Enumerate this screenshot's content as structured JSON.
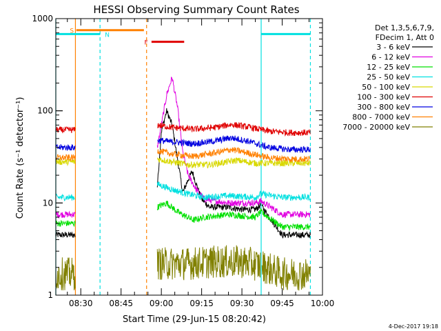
{
  "chart_data": {
    "type": "line",
    "title": "HESSI Observing Summary Count Rates",
    "xlabel": "Start Time (29-Jun-15 08:20:42)",
    "ylabel": "Count Rate (s⁻¹ detector⁻¹)",
    "yscale": "log",
    "ylim": [
      1,
      1000
    ],
    "xlim": [
      "08:20:42",
      "10:00:00"
    ],
    "x_ticks": [
      "08:30",
      "08:45",
      "09:00",
      "09:15",
      "09:30",
      "09:45",
      "10:00"
    ],
    "y_ticks": [
      "1",
      "10",
      "100",
      "1000"
    ],
    "legend_header": [
      "Det 1,3,5,6,7,9,",
      "FDecim 1, Att 0"
    ],
    "legend_position": "right",
    "timestamp": "4-Dec-2017 19:18",
    "series": [
      {
        "name": "3 - 6 keV",
        "color": "#000000",
        "points": [
          [
            "08:20:42",
            4.5
          ],
          [
            "08:28:00",
            4.5
          ],
          [
            "08:58:30",
            15
          ],
          [
            "09:00:00",
            60
          ],
          [
            "09:02:00",
            100
          ],
          [
            "09:04:00",
            70
          ],
          [
            "09:06:00",
            30
          ],
          [
            "09:08:00",
            13
          ],
          [
            "09:10:00",
            18
          ],
          [
            "09:11:30",
            22
          ],
          [
            "09:13:00",
            16
          ],
          [
            "09:15:00",
            11
          ],
          [
            "09:18:00",
            9
          ],
          [
            "09:25:00",
            9
          ],
          [
            "09:30:00",
            8.5
          ],
          [
            "09:35:00",
            8.5
          ],
          [
            "09:37:00",
            9.5
          ],
          [
            "09:45:00",
            4.5
          ],
          [
            "09:55:30",
            4.5
          ]
        ]
      },
      {
        "name": "6 - 12 keV",
        "color": "#e000e0",
        "points": [
          [
            "08:20:42",
            7.5
          ],
          [
            "08:28:00",
            7.5
          ],
          [
            "08:58:30",
            40
          ],
          [
            "09:00:00",
            70
          ],
          [
            "09:02:00",
            150
          ],
          [
            "09:04:00",
            230
          ],
          [
            "09:06:00",
            110
          ],
          [
            "09:08:00",
            35
          ],
          [
            "09:10:00",
            20
          ],
          [
            "09:13:00",
            14
          ],
          [
            "09:16:00",
            11
          ],
          [
            "09:25:00",
            10
          ],
          [
            "09:35:00",
            10
          ],
          [
            "09:37:00",
            10.5
          ],
          [
            "09:45:00",
            7.5
          ],
          [
            "09:55:30",
            7.5
          ]
        ]
      },
      {
        "name": "12 - 25 keV",
        "color": "#00e000",
        "points": [
          [
            "08:20:42",
            6
          ],
          [
            "08:28:00",
            6
          ],
          [
            "08:58:30",
            9
          ],
          [
            "09:02:00",
            10
          ],
          [
            "09:06:00",
            8
          ],
          [
            "09:12:00",
            6.5
          ],
          [
            "09:16:00",
            7
          ],
          [
            "09:25:00",
            7.5
          ],
          [
            "09:35:00",
            7
          ],
          [
            "09:37:00",
            8
          ],
          [
            "09:45:00",
            5.5
          ],
          [
            "09:55:30",
            5.5
          ]
        ]
      },
      {
        "name": "25 - 50 keV",
        "color": "#00e0e0",
        "points": [
          [
            "08:20:42",
            11.5
          ],
          [
            "08:28:00",
            11.5
          ],
          [
            "08:58:30",
            16
          ],
          [
            "09:04:00",
            14
          ],
          [
            "09:10:00",
            12.5
          ],
          [
            "09:16:00",
            11.5
          ],
          [
            "09:25:00",
            12
          ],
          [
            "09:35:00",
            11.5
          ],
          [
            "09:37:00",
            12.5
          ],
          [
            "09:45:00",
            11.5
          ],
          [
            "09:55:30",
            11.5
          ]
        ]
      },
      {
        "name": "50 - 100 keV",
        "color": "#d8d800",
        "points": [
          [
            "08:20:42",
            28
          ],
          [
            "08:28:00",
            28
          ],
          [
            "08:58:30",
            30
          ],
          [
            "09:04:00",
            28
          ],
          [
            "09:10:00",
            26
          ],
          [
            "09:18:00",
            26
          ],
          [
            "09:28:00",
            29
          ],
          [
            "09:35:00",
            27
          ],
          [
            "09:45:00",
            27
          ],
          [
            "09:55:30",
            27
          ]
        ]
      },
      {
        "name": "100 - 300 keV",
        "color": "#e00000",
        "points": [
          [
            "08:20:42",
            62
          ],
          [
            "08:28:00",
            62
          ],
          [
            "08:58:30",
            70
          ],
          [
            "09:04:00",
            66
          ],
          [
            "09:12:00",
            63
          ],
          [
            "09:20:00",
            66
          ],
          [
            "09:26:00",
            71
          ],
          [
            "09:32:00",
            67
          ],
          [
            "09:40:00",
            60
          ],
          [
            "09:48:00",
            58
          ],
          [
            "09:55:30",
            58
          ]
        ]
      },
      {
        "name": "300 - 800 keV",
        "color": "#0000e0",
        "points": [
          [
            "08:20:42",
            40
          ],
          [
            "08:28:00",
            40
          ],
          [
            "08:58:30",
            48
          ],
          [
            "09:04:00",
            46
          ],
          [
            "09:12:00",
            44
          ],
          [
            "09:20:00",
            47
          ],
          [
            "09:26:00",
            51
          ],
          [
            "09:32:00",
            47
          ],
          [
            "09:40:00",
            40
          ],
          [
            "09:48:00",
            38
          ],
          [
            "09:55:30",
            38
          ]
        ]
      },
      {
        "name": "800 - 7000 keV",
        "color": "#ff8000",
        "points": [
          [
            "08:20:42",
            31
          ],
          [
            "08:28:00",
            31
          ],
          [
            "08:58:30",
            37
          ],
          [
            "09:04:00",
            34
          ],
          [
            "09:12:00",
            32
          ],
          [
            "09:20:00",
            35
          ],
          [
            "09:26:00",
            38
          ],
          [
            "09:32:00",
            35
          ],
          [
            "09:40:00",
            31
          ],
          [
            "09:48:00",
            30
          ],
          [
            "09:55:30",
            30
          ]
        ]
      },
      {
        "name": "7000 - 20000 keV",
        "color": "#808000",
        "points": [
          [
            "08:20:42",
            1.7
          ],
          [
            "08:28:00",
            1.7
          ],
          [
            "08:58:30",
            2.2
          ],
          [
            "09:10:00",
            2.2
          ],
          [
            "09:20:00",
            2.3
          ],
          [
            "09:30:00",
            2.3
          ],
          [
            "09:37:00",
            2.1
          ],
          [
            "09:45:00",
            1.7
          ],
          [
            "09:55:30",
            1.7
          ]
        ]
      }
    ],
    "segments": [
      {
        "series": "3 - 6 keV",
        "ranges": [
          [
            "08:20:42",
            "08:28:00"
          ],
          [
            "08:58:30",
            "09:37:00"
          ],
          [
            "09:37:30",
            "09:55:30"
          ]
        ]
      },
      {
        "series": "7000 - 20000 keV",
        "ranges": [
          [
            "08:20:42",
            "08:28:00"
          ],
          [
            "08:58:30",
            "09:37:00"
          ],
          [
            "09:37:30",
            "09:55:30"
          ]
        ]
      }
    ],
    "flag_markers": [
      {
        "label": "S",
        "color": "#ff8000",
        "y": 750,
        "x_start": "08:28:20",
        "x_end": "08:53:30",
        "label_x": "08:26:40"
      },
      {
        "label": "N",
        "color": "#00e0e0",
        "y": 680,
        "x_start": "08:20:42",
        "x_end": "08:37:10",
        "label_x": "08:39:50"
      },
      {
        "label": "N",
        "color": "#00e0e0",
        "y": 680,
        "x_start": "09:37:10",
        "x_end": "09:55:30",
        "label_x": ""
      },
      {
        "label": "F",
        "color": "#e00000",
        "y": 560,
        "x_start": "08:56:20",
        "x_end": "09:08:30",
        "label_x": "08:54:20"
      }
    ],
    "vertical_lines": [
      {
        "x": "08:28:00",
        "color": "#ff8000",
        "style": "solid"
      },
      {
        "x": "08:37:10",
        "color": "#00e0e0",
        "style": "dashed"
      },
      {
        "x": "08:54:30",
        "color": "#ff8000",
        "style": "dashed"
      },
      {
        "x": "09:37:10",
        "color": "#00e0e0",
        "style": "solid"
      },
      {
        "x": "09:55:30",
        "color": "#00e0e0",
        "style": "dashed"
      },
      {
        "x": "08:20:42",
        "color": "#00e0e0",
        "style": "solid"
      }
    ]
  }
}
